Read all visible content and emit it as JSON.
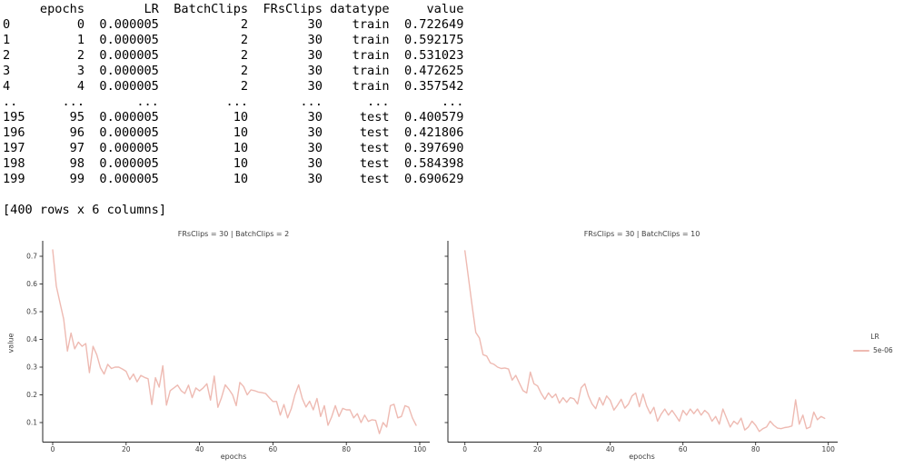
{
  "terminal_output": {
    "lines": [
      "     epochs        LR  BatchClips  FRsClips datatype     value",
      "0         0  0.000005           2        30    train  0.722649",
      "1         1  0.000005           2        30    train  0.592175",
      "2         2  0.000005           2        30    train  0.531023",
      "3         3  0.000005           2        30    train  0.472625",
      "4         4  0.000005           2        30    train  0.357542",
      "..      ...       ...         ...       ...      ...       ...",
      "195      95  0.000005          10        30     test  0.400579",
      "196      96  0.000005          10        30     test  0.421806",
      "197      97  0.000005          10        30     test  0.397690",
      "198      98  0.000005          10        30     test  0.584398",
      "199      99  0.000005          10        30     test  0.690629"
    ],
    "footer": "[400 rows x 6 columns]"
  },
  "legend": {
    "title": "LR",
    "entries": [
      {
        "label": "5e-06",
        "color": "#eebab2"
      }
    ]
  },
  "colors": {
    "line": "#eebab2",
    "spine": "#262626",
    "tick_text": "#3d3d3d"
  },
  "chart_data": [
    {
      "type": "line",
      "title": "FRsClips = 30 | BatchClips = 2",
      "xlabel": "epochs",
      "ylabel": "value",
      "xticks": [
        0,
        20,
        40,
        60,
        80,
        100
      ],
      "yticks": [
        0.1,
        0.2,
        0.3,
        0.4,
        0.5,
        0.6,
        0.7
      ],
      "xlim": [
        -5,
        105
      ],
      "ylim": [
        0.03,
        0.75
      ],
      "grid": false,
      "legend_position": "right",
      "series": [
        {
          "name": "5e-06",
          "x": [
            0,
            1,
            2,
            3,
            4,
            5,
            6,
            7,
            8,
            9,
            10,
            11,
            12,
            13,
            14,
            15,
            16,
            17,
            18,
            19,
            20,
            21,
            22,
            23,
            24,
            25,
            26,
            27,
            28,
            29,
            30,
            31,
            32,
            33,
            34,
            35,
            36,
            37,
            38,
            39,
            40,
            41,
            42,
            43,
            44,
            45,
            46,
            47,
            48,
            49,
            50,
            51,
            52,
            53,
            54,
            55,
            56,
            57,
            58,
            59,
            60,
            61,
            62,
            63,
            64,
            65,
            66,
            67,
            68,
            69,
            70,
            71,
            72,
            73,
            74,
            75,
            76,
            77,
            78,
            79,
            80,
            81,
            82,
            83,
            84,
            85,
            86,
            87,
            88,
            89,
            90,
            91,
            92,
            93,
            94,
            95,
            96,
            97,
            98,
            99
          ],
          "values": [
            0.723,
            0.592,
            0.531,
            0.473,
            0.358,
            0.423,
            0.366,
            0.39,
            0.375,
            0.385,
            0.28,
            0.375,
            0.345,
            0.298,
            0.275,
            0.31,
            0.295,
            0.3,
            0.3,
            0.293,
            0.285,
            0.255,
            0.275,
            0.247,
            0.27,
            0.263,
            0.258,
            0.165,
            0.262,
            0.228,
            0.305,
            0.163,
            0.215,
            0.225,
            0.235,
            0.215,
            0.205,
            0.235,
            0.19,
            0.225,
            0.214,
            0.225,
            0.24,
            0.181,
            0.268,
            0.155,
            0.19,
            0.236,
            0.22,
            0.2,
            0.161,
            0.245,
            0.23,
            0.2,
            0.218,
            0.215,
            0.21,
            0.208,
            0.205,
            0.19,
            0.176,
            0.176,
            0.127,
            0.165,
            0.117,
            0.15,
            0.2,
            0.236,
            0.187,
            0.156,
            0.177,
            0.146,
            0.187,
            0.122,
            0.161,
            0.09,
            0.12,
            0.161,
            0.122,
            0.151,
            0.146,
            0.146,
            0.117,
            0.132,
            0.1,
            0.127,
            0.104,
            0.11,
            0.108,
            0.06,
            0.1,
            0.084,
            0.161,
            0.166,
            0.117,
            0.122,
            0.161,
            0.155,
            0.117,
            0.09
          ]
        }
      ]
    },
    {
      "type": "line",
      "title": "FRsClips = 30 | BatchClips = 10",
      "xlabel": "epochs",
      "ylabel": "",
      "xticks": [
        0,
        20,
        40,
        60,
        80,
        100
      ],
      "yticks": [
        0.1,
        0.2,
        0.3,
        0.4,
        0.5,
        0.6,
        0.7
      ],
      "xlim": [
        -5,
        105
      ],
      "ylim": [
        0.03,
        0.75
      ],
      "grid": false,
      "legend_position": "right",
      "series": [
        {
          "name": "5e-06",
          "x": [
            0,
            1,
            2,
            3,
            4,
            5,
            6,
            7,
            8,
            9,
            10,
            11,
            12,
            13,
            14,
            15,
            16,
            17,
            18,
            19,
            20,
            21,
            22,
            23,
            24,
            25,
            26,
            27,
            28,
            29,
            30,
            31,
            32,
            33,
            34,
            35,
            36,
            37,
            38,
            39,
            40,
            41,
            42,
            43,
            44,
            45,
            46,
            47,
            48,
            49,
            50,
            51,
            52,
            53,
            54,
            55,
            56,
            57,
            58,
            59,
            60,
            61,
            62,
            63,
            64,
            65,
            66,
            67,
            68,
            69,
            70,
            71,
            72,
            73,
            74,
            75,
            76,
            77,
            78,
            79,
            80,
            81,
            82,
            83,
            84,
            85,
            86,
            87,
            88,
            89,
            90,
            91,
            92,
            93,
            94,
            95,
            96,
            97,
            98,
            99
          ],
          "values": [
            0.72,
            0.62,
            0.52,
            0.425,
            0.405,
            0.345,
            0.34,
            0.315,
            0.31,
            0.3,
            0.295,
            0.297,
            0.293,
            0.253,
            0.27,
            0.242,
            0.215,
            0.207,
            0.282,
            0.24,
            0.232,
            0.205,
            0.184,
            0.207,
            0.19,
            0.203,
            0.17,
            0.19,
            0.173,
            0.19,
            0.186,
            0.167,
            0.226,
            0.24,
            0.196,
            0.167,
            0.15,
            0.19,
            0.163,
            0.196,
            0.18,
            0.145,
            0.163,
            0.184,
            0.152,
            0.167,
            0.196,
            0.207,
            0.157,
            0.203,
            0.16,
            0.132,
            0.155,
            0.105,
            0.13,
            0.149,
            0.127,
            0.144,
            0.125,
            0.105,
            0.144,
            0.127,
            0.149,
            0.132,
            0.149,
            0.127,
            0.144,
            0.132,
            0.105,
            0.122,
            0.094,
            0.149,
            0.116,
            0.084,
            0.105,
            0.094,
            0.116,
            0.073,
            0.084,
            0.105,
            0.09,
            0.068,
            0.078,
            0.084,
            0.105,
            0.09,
            0.08,
            0.078,
            0.082,
            0.084,
            0.088,
            0.182,
            0.094,
            0.127,
            0.078,
            0.084,
            0.138,
            0.11,
            0.122,
            0.115
          ]
        }
      ]
    }
  ]
}
